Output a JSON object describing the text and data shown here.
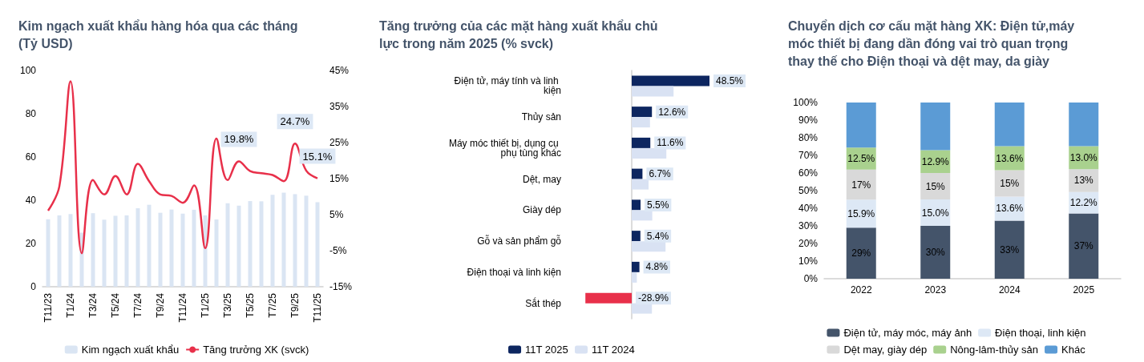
{
  "chart_data": [
    {
      "type": "bar",
      "title": "Kim ngạch xuất khẩu hàng hóa qua các tháng (Tỷ USD)",
      "categories": [
        "T11/23",
        null,
        "T1/24",
        null,
        "T3/24",
        null,
        "T5/24",
        null,
        "T7/24",
        null,
        "T9/24",
        null,
        "T11/24",
        null,
        "T1/25",
        null,
        "T3/25",
        null,
        "T5/25",
        null,
        "T7/25",
        null,
        "T9/25",
        null,
        "T11/25"
      ],
      "series": [
        {
          "name": "Kim ngạch xuất khẩu",
          "color": "#dae5f3",
          "values": [
            31.2,
            33,
            33.6,
            25,
            34,
            31,
            32.8,
            33,
            36.3,
            37.9,
            34.2,
            35.7,
            33.8,
            35.6,
            33,
            31.1,
            38.6,
            37.5,
            39.6,
            39.5,
            42.5,
            43.5,
            42.8,
            42.1,
            39.1
          ]
        },
        {
          "name": "Tăng trưởng XK (svck)",
          "type": "line",
          "axis": "y2",
          "color": "#e8304a",
          "values": [
            6.1,
            12.8,
            42,
            -5.7,
            14.6,
            10.6,
            15.7,
            10.6,
            19.1,
            14.3,
            10.6,
            10.2,
            8.3,
            13.1,
            -4.3,
            26.1,
            14.6,
            19.8,
            17.1,
            16.5,
            16,
            14.3,
            24.7,
            17.2,
            15.1
          ],
          "value_labels": [
            null,
            null,
            null,
            null,
            null,
            null,
            null,
            null,
            null,
            null,
            null,
            null,
            null,
            null,
            null,
            null,
            null,
            "19.8%",
            null,
            null,
            null,
            null,
            "24.7%",
            null,
            "15.1%"
          ]
        }
      ],
      "ylim": [
        0,
        100
      ],
      "yticks": [
        0,
        20,
        40,
        60,
        80,
        100
      ],
      "y2lim": [
        -15,
        45
      ],
      "y2ticks": [
        {
          "value": -15,
          "label": "-15%"
        },
        {
          "value": -5,
          "label": "-5%"
        },
        {
          "value": 5,
          "label": "5%"
        },
        {
          "value": 15,
          "label": "15%"
        },
        {
          "value": 25,
          "label": "25%"
        },
        {
          "value": 35,
          "label": "35%"
        },
        {
          "value": 45,
          "label": "45%"
        }
      ],
      "grid": false,
      "legend": "bottom",
      "marker": "none"
    },
    {
      "type": "bar",
      "orientation": "horizontal",
      "title": "Tăng trưởng của các mặt hàng xuất khẩu chủ lực trong năm 2025 (% svck)",
      "categories": [
        "Điện tử, máy tính và linh kiện",
        "Thủy sản",
        "Máy móc thiết bị, dụng cụ phụ tùng khác",
        "Dệt, may",
        "Giày dép",
        "Gỗ và sản phẩm gỗ",
        "Điện thoại và linh kiện",
        "Sắt thép"
      ],
      "series": [
        {
          "name": "11T 2025",
          "color": "#0d2660",
          "colors": [
            "#0d2660",
            "#0d2660",
            "#0d2660",
            "#0d2660",
            "#0d2660",
            "#0d2660",
            "#0d2660",
            "#e8304a"
          ],
          "values": [
            48.5,
            12.6,
            11.6,
            6.7,
            5.5,
            5.4,
            4.8,
            -28.9
          ],
          "value_labels": [
            "48.5%",
            "12.6%",
            "11.6%",
            "6.7%",
            "5.5%",
            "5.4%",
            "4.8%",
            "-28.9%"
          ]
        },
        {
          "name": "11T 2024",
          "color": "#d9e2f3",
          "values": [
            26.1,
            11.4,
            21.6,
            10.5,
            12.8,
            21.1,
            3.2,
            12.6
          ]
        }
      ],
      "tick_labels": "y",
      "grid": false,
      "legend": "bottom"
    },
    {
      "type": "bar",
      "stacked": true,
      "title": "Chuyển dịch cơ cấu mặt hàng XK: Điện tử,máy móc thiết bị đang dần đóng vai trò quan trọng thay thế cho Điện thoại và dệt may, da giày",
      "categories": [
        "2022",
        "2023",
        "2024",
        "2025"
      ],
      "series": [
        {
          "name": "Điện tử, máy móc, máy ảnh",
          "color": "#44546a",
          "values": [
            29,
            30,
            33,
            37
          ],
          "value_labels": [
            "29%",
            "30%",
            "33%",
            "37%"
          ]
        },
        {
          "name": "Điện thoại, linh kiện",
          "color": "#dde8f5",
          "values": [
            15.9,
            15.0,
            13.6,
            12.2
          ],
          "value_labels": [
            "15.9%",
            "15.0%",
            "13.6%",
            "12.2%"
          ]
        },
        {
          "name": "Dệt may, giày dép",
          "color": "#d9d9d9",
          "values": [
            17,
            15,
            15,
            13
          ],
          "value_labels": [
            "17%",
            "15%",
            "15%",
            "13%"
          ]
        },
        {
          "name": "Nông-lâm-thủy sản",
          "color": "#a9d18e",
          "values": [
            12.5,
            12.9,
            13.6,
            13.0
          ],
          "value_labels": [
            "12.5%",
            "12.9%",
            "13.6%",
            "13.0%"
          ]
        },
        {
          "name": "Khác",
          "color": "#5b9bd5",
          "values": [
            25.6,
            27.1,
            24.8,
            24.8
          ]
        }
      ],
      "ylim": [
        0,
        100
      ],
      "yticks": [
        {
          "value": 0,
          "label": "0%"
        },
        {
          "value": 10,
          "label": "10%"
        },
        {
          "value": 20,
          "label": "20%"
        },
        {
          "value": 30,
          "label": "30%"
        },
        {
          "value": 40,
          "label": "40%"
        },
        {
          "value": 50,
          "label": "50%"
        },
        {
          "value": 60,
          "label": "60%"
        },
        {
          "value": 70,
          "label": "70%"
        },
        {
          "value": 80,
          "label": "80%"
        },
        {
          "value": 90,
          "label": "90%"
        },
        {
          "value": 100,
          "label": "100%"
        }
      ],
      "grid": false,
      "legend": "bottom"
    }
  ]
}
